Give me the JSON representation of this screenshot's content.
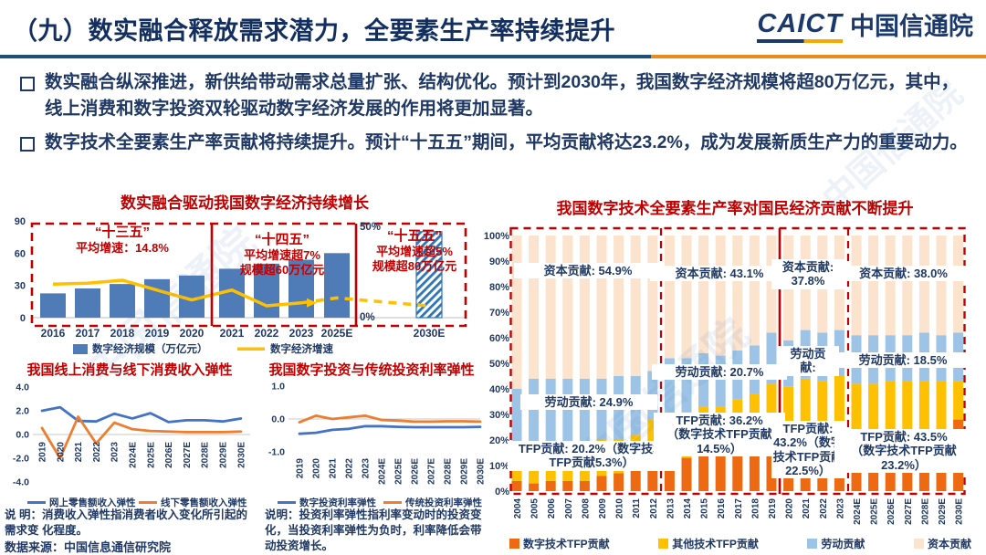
{
  "header": {
    "title": "（九）数实融合释放需求潜力，全要素生产率持续提升",
    "logo_text": "CAICT",
    "logo_cn": "中国信通院"
  },
  "bullets": [
    "数实融合纵深推进，新供给带动需求总量扩张、结构优化。预计到2030年，我国数字经济规模将超80万亿元，其中，线上消费和数字投资双轮驱动数字经济发展的作用将更加显著。",
    "数字技术全要素生产率贡献将持续提升。预计“十五五”期间，平均贡献将达23.2%，成为发展新质生产力的重要动力。"
  ],
  "watermark": {
    "text": "中国信通院"
  },
  "left_panel": {
    "source": "数据来源：中国信息通信研究院"
  },
  "chart_data": [
    {
      "id": "digital_economy_growth",
      "type": "combo-bar-line",
      "title": "数实融合驱动我国数字经济持续增长",
      "categories": [
        "2016",
        "2017",
        "2018",
        "2019",
        "2020",
        "2021",
        "2022",
        "2023",
        "2025E",
        "2030E"
      ],
      "bar_series": {
        "name": "数字经济规模（万亿元）",
        "color": "#4F7CB6",
        "values": [
          22.6,
          27.2,
          31.3,
          35.8,
          39.2,
          45.5,
          50.2,
          53.9,
          60,
          80
        ],
        "last_bar_hatched": true
      },
      "line_series": {
        "name": "数字经济增速",
        "color": "#FFC000",
        "values_pct": [
          17,
          17.5,
          19,
          14,
          9,
          14,
          6,
          7.5,
          10,
          6
        ],
        "dashed_from_index": 7
      },
      "left_axis": {
        "ticks": [
          90,
          60,
          30,
          0
        ],
        "max": 90
      },
      "right_axis": {
        "ticks": [
          "50%",
          "0%"
        ],
        "max_pct": 50
      },
      "phases": [
        {
          "name": "“十三五”",
          "lines": [
            "平均增速：14.8%"
          ]
        },
        {
          "name": "“十四五”",
          "lines": [
            "平均增速超7%",
            "规模超60万亿元"
          ]
        },
        {
          "name": "“十五五”",
          "lines": [
            "平均增速超5%",
            "规模超80万亿元"
          ]
        }
      ]
    },
    {
      "id": "consumption_elasticity",
      "type": "line",
      "title": "我国线上消费与线下消费收入弹性",
      "categories": [
        "2019",
        "2020",
        "2021",
        "2022",
        "2023",
        "2024E",
        "2025E",
        "2026E",
        "2027E",
        "2028E",
        "2029E",
        "2030E"
      ],
      "series": [
        {
          "name": "网上零售额收入弹性",
          "color": "#4472C4",
          "values": [
            2.0,
            2.3,
            1.15,
            1.1,
            1.75,
            1.35,
            1.8,
            1.05,
            1.2,
            1.2,
            1.1,
            1.35
          ]
        },
        {
          "name": "线下零售额收入弹性",
          "color": "#ED7D31",
          "values": [
            0.55,
            -2.0,
            1.5,
            -0.75,
            1.0,
            0.45,
            0.3,
            0.25,
            0.2,
            0.2,
            0.2,
            0.25
          ]
        }
      ],
      "ylim": [
        -4,
        4
      ],
      "yticks": [
        "4.0",
        "2.0",
        "0.0",
        "-2.0",
        "-4.0"
      ],
      "note": "说 明：消费收入弹性指消费者收入变化所引起的需求变 化程度。"
    },
    {
      "id": "investment_elasticity",
      "type": "line",
      "title": "我国数字投资与传统投资利率弹性",
      "categories": [
        "2019",
        "2020",
        "2021",
        "2022",
        "2023",
        "2024E",
        "2025E",
        "2026E",
        "2027E",
        "2028E",
        "2029E",
        "2030E"
      ],
      "series": [
        {
          "name": "数字投资利率弹性",
          "color": "#4472C4",
          "values": [
            -0.45,
            -0.42,
            -0.33,
            -0.3,
            -0.22,
            -0.22,
            -0.24,
            -0.25,
            -0.25,
            -0.25,
            -0.25,
            -0.24
          ]
        },
        {
          "name": "传统投资利率弹性",
          "color": "#ED7D31",
          "values": [
            -0.1,
            0.1,
            0.0,
            0.05,
            0.1,
            -0.03,
            -0.05,
            -0.08,
            -0.08,
            -0.07,
            -0.07,
            -0.08
          ]
        }
      ],
      "ylim": [
        -1,
        1
      ],
      "yticks": [
        "1.0",
        "0.0",
        "-1.0"
      ],
      "note": "说明：投资利率弹性指利率变动时的投资变化，当投资利率弹性为负时，利率降低会带动投资增长。"
    },
    {
      "id": "tfp_contribution",
      "type": "stacked_bar",
      "title": "我国数字技术全要素生产率对国民经济贡献不断提升",
      "categories": [
        "2004",
        "2005",
        "2006",
        "2007",
        "2008",
        "2009",
        "2010",
        "2011",
        "2012",
        "2013",
        "2014",
        "2015",
        "2016",
        "2017",
        "2018",
        "2019",
        "2020",
        "2021",
        "2022",
        "2023",
        "2024E",
        "2025E",
        "2026E",
        "2027E",
        "2028E",
        "2029E",
        "2030E"
      ],
      "series": [
        {
          "name": "数字技术TFP贡献",
          "color": "#ED6A13",
          "values": [
            4,
            3,
            4,
            4,
            4,
            6,
            7,
            8,
            12,
            13,
            13,
            15,
            14,
            16,
            17,
            20,
            21,
            23,
            22,
            24,
            22,
            22,
            23,
            23,
            23,
            23,
            28
          ]
        },
        {
          "name": "其他技术TFP贡献",
          "color": "#FFC000",
          "values": [
            10,
            12,
            15,
            13,
            13,
            14,
            13,
            14,
            16,
            17,
            18,
            18,
            19,
            20,
            21,
            22,
            20,
            21,
            21,
            21,
            20,
            20,
            20,
            20,
            20,
            20,
            15
          ]
        },
        {
          "name": "劳动贡献",
          "color": "#9DC3E6",
          "values": [
            26,
            29,
            25,
            27,
            27,
            24,
            25,
            23,
            19,
            22,
            21,
            21,
            20,
            19,
            19,
            20,
            18,
            19,
            19,
            18,
            19,
            19,
            18,
            18,
            19,
            18,
            19
          ]
        },
        {
          "name": "资本贡献",
          "color": "#FBE3CD",
          "values": [
            60,
            56,
            56,
            56,
            56,
            56,
            55,
            55,
            53,
            48,
            48,
            46,
            47,
            45,
            43,
            38,
            41,
            37,
            38,
            37,
            39,
            39,
            39,
            39,
            38,
            39,
            38
          ]
        }
      ],
      "yticks": [
        "100%",
        "90%",
        "80%",
        "70%",
        "60%",
        "50%",
        "40%",
        "30%",
        "20%",
        "10%",
        "0%"
      ],
      "group_dividers_after": [
        "2012",
        "2019",
        "2023"
      ],
      "annotations": {
        "g1_capital": [
          "资本贡献: 54.9%"
        ],
        "g2_capital": [
          "资本贡献: 43.1%"
        ],
        "g3_capital": [
          "资本贡献:",
          "37.8%"
        ],
        "g4_capital": [
          "资本贡献: 38.0%"
        ],
        "g1_labor": [
          "劳动贡献: 24.9%"
        ],
        "g2_labor": [
          "劳动贡献: 20.7%"
        ],
        "g3_labor": [
          "劳动贡",
          "献:"
        ],
        "g4_labor": [
          "劳动贡献: 18.5%"
        ],
        "g1_tfp": [
          "TFP贡献: 20.2%（数字技术",
          "TFP贡献5.3%）"
        ],
        "g2_tfp": [
          "TFP贡献: 36.2%",
          "（数字技术TFP贡献",
          "14.5%）"
        ],
        "g3_tfp": [
          "TFP贡献:",
          "43.2%（数字",
          "技术TFP贡献",
          "22.5%）"
        ],
        "g4_tfp": [
          "TFP贡献: 43.5%",
          "（数字技术TFP贡献",
          "23.2%）"
        ]
      }
    }
  ]
}
